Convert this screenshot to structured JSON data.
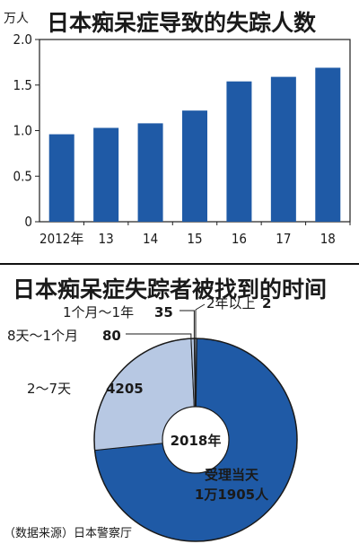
{
  "colors": {
    "bar": "#1f5aa6",
    "slice_main": "#1f5aa6",
    "slice_light": "#b7c8e3",
    "inner": "#ffffff",
    "frame": "#1f1f1f"
  },
  "chart_data": [
    {
      "type": "bar",
      "title": "日本痴呆症导致的失踪人数",
      "unit_label": "万人",
      "categories": [
        "2012年",
        "13",
        "14",
        "15",
        "16",
        "17",
        "18"
      ],
      "values": [
        0.96,
        1.03,
        1.08,
        1.22,
        1.54,
        1.59,
        1.69
      ],
      "ylim": [
        0,
        2.0
      ],
      "yticks": [
        "0",
        "0.5",
        "1.0",
        "1.5",
        "2.0"
      ],
      "grid": false
    },
    {
      "type": "pie",
      "title": "日本痴呆症失踪者被找到的时间",
      "center_label": "2018年",
      "slices": [
        {
          "label": "受理当天",
          "value_text": "1万1905人",
          "value": 11905
        },
        {
          "label": "2～7天",
          "value_text": "4205",
          "value": 4205
        },
        {
          "label": "8天～1个月",
          "value_text": "80",
          "value": 80
        },
        {
          "label": "1个月～1年",
          "value_text": "35",
          "value": 35
        },
        {
          "label": "2年以上",
          "value_text": "2",
          "value": 2
        }
      ]
    }
  ],
  "source": "（数据来源）日本警察厅"
}
